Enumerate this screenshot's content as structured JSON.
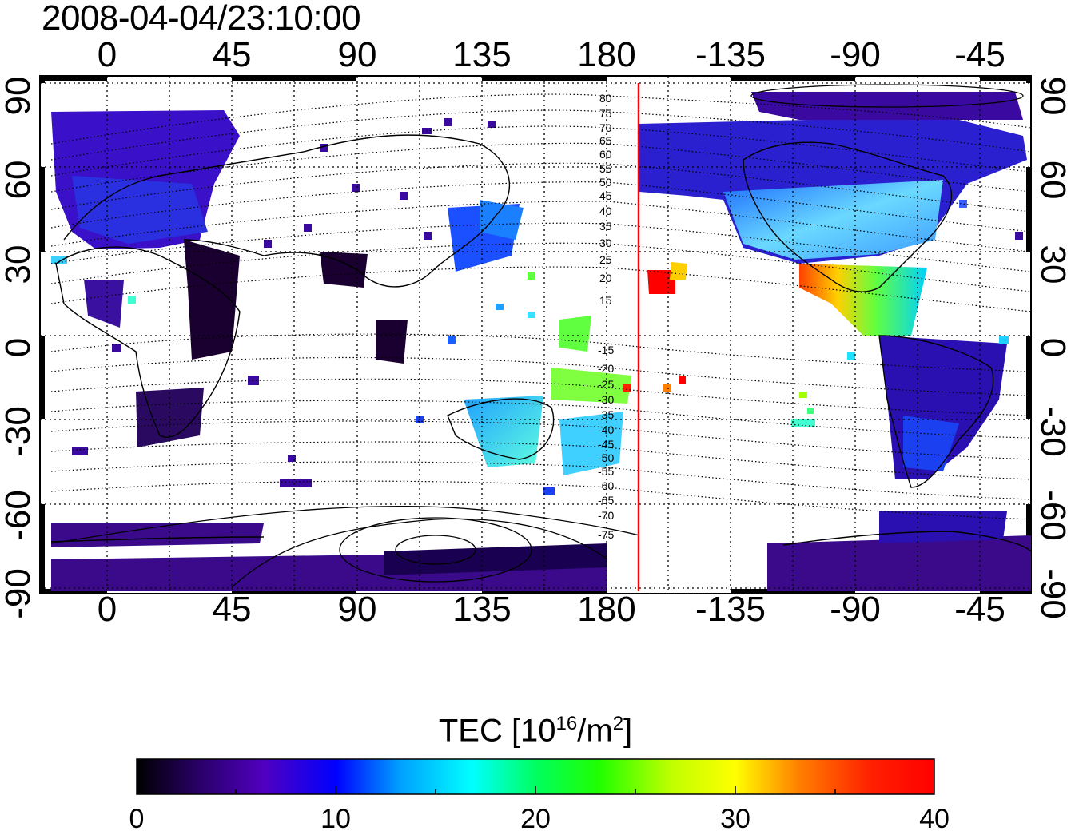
{
  "header": {
    "timestamp": "2008-04-04/23:10:00"
  },
  "map": {
    "top_lon_ticks": [
      "0",
      "45",
      "90",
      "135",
      "180",
      "-135",
      "-90",
      "-45"
    ],
    "bottom_lon_ticks": [
      "0",
      "45",
      "90",
      "135",
      "180",
      "-135",
      "-90",
      "-45"
    ],
    "left_lat_ticks": [
      "90",
      "60",
      "30",
      "0",
      "-30",
      "-60",
      "-90"
    ],
    "right_lat_ticks": [
      "90",
      "60",
      "30",
      "0",
      "-30",
      "-60",
      "-90"
    ],
    "lon_range": [
      -20,
      338
    ],
    "lat_range": [
      -90,
      90
    ],
    "grid": "dotted, every 30° lat / 22.5° lon",
    "magnetic_latitude_labels_north": [
      "80",
      "75",
      "70",
      "65",
      "60",
      "55",
      "50",
      "45",
      "40",
      "35",
      "30",
      "25",
      "20",
      "15"
    ],
    "magnetic_latitude_labels_south": [
      "-15",
      "-20",
      "-25",
      "-30",
      "-35",
      "-40",
      "-45",
      "-50",
      "-55",
      "-60",
      "-65",
      "-70",
      "-75"
    ],
    "terminator_line": {
      "longitude": -168,
      "color": "#ff0000"
    },
    "coastlines": "solid black outlines"
  },
  "colorbar": {
    "title_prefix": "TEC  [10",
    "title_exp": "16",
    "title_mid": "/m",
    "title_exp2": "2",
    "title_suffix": "]",
    "min": 0,
    "max": 40,
    "ticks": [
      "0",
      "10",
      "20",
      "30",
      "40"
    ],
    "colormap": [
      "#000000",
      "#2a006a",
      "#5000c0",
      "#0000ff",
      "#00a0ff",
      "#00ffff",
      "#00ff60",
      "#20ff00",
      "#c0ff00",
      "#ffff00",
      "#ff8000",
      "#ff2000",
      "#ff0000"
    ]
  }
}
